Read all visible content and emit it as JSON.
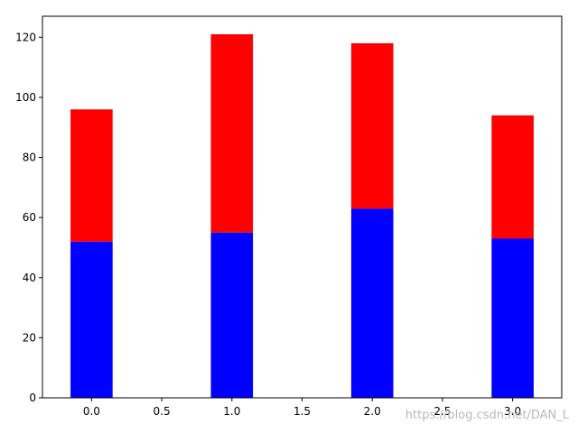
{
  "chart_data": {
    "type": "bar",
    "stacked": true,
    "x": [
      0,
      1,
      2,
      3
    ],
    "bar_width": 0.3,
    "series": [
      {
        "values": [
          52,
          55,
          63,
          53
        ],
        "color": "#0000ff"
      },
      {
        "values": [
          44,
          66,
          55,
          41
        ],
        "color": "#ff0000"
      }
    ],
    "stack_totals": [
      96,
      121,
      118,
      94
    ],
    "xlim": [
      -0.35,
      3.35
    ],
    "ylim": [
      0,
      127
    ],
    "xticks": [
      0.0,
      0.5,
      1.0,
      1.5,
      2.0,
      2.5,
      3.0
    ],
    "xtick_labels": [
      "0.0",
      "0.5",
      "1.0",
      "1.5",
      "2.0",
      "2.5",
      "3.0"
    ],
    "yticks": [
      0,
      20,
      40,
      60,
      80,
      100,
      120
    ],
    "ytick_labels": [
      "0",
      "20",
      "40",
      "60",
      "80",
      "100",
      "120"
    ],
    "grid": false,
    "legend": "none"
  },
  "watermark": "https://blog.csdn.net/DAN_L"
}
